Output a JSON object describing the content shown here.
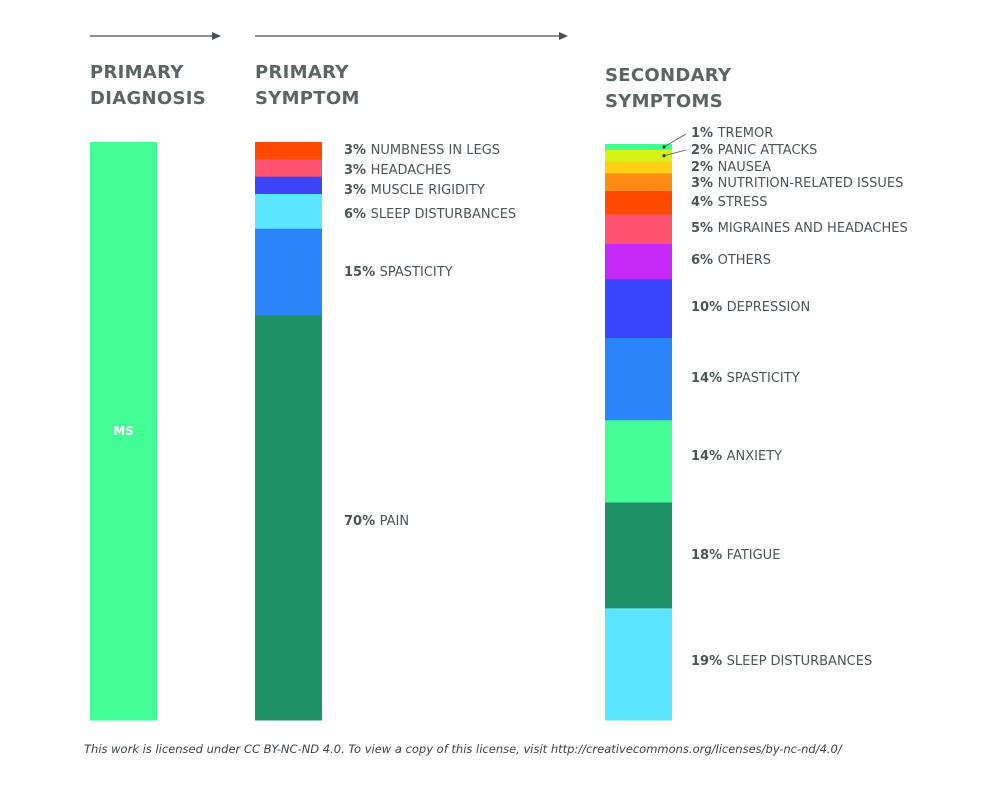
{
  "chart_data": {
    "type": "bar",
    "subtype": "stacked-column-flow",
    "columns": [
      {
        "id": "primary-diagnosis",
        "header": [
          "PRIMARY",
          "DIAGNOSIS"
        ],
        "segments": [
          {
            "pct": "",
            "label": "MS",
            "value": 100,
            "color": "#42fc95",
            "inside": true
          }
        ]
      },
      {
        "id": "primary-symptom",
        "header": [
          "PRIMARY",
          "SYMPTOM"
        ],
        "segments": [
          {
            "pct": "3%",
            "label": "NUMBNESS IN LEGS",
            "value": 3,
            "color": "#ff4a06"
          },
          {
            "pct": "3%",
            "label": "HEADACHES",
            "value": 3,
            "color": "#ff5270"
          },
          {
            "pct": "3%",
            "label": "MUSCLE RIGIDITY",
            "value": 3,
            "color": "#3a45fb"
          },
          {
            "pct": "6%",
            "label": "SLEEP DISTURBANCES",
            "value": 6,
            "color": "#5ce6fe"
          },
          {
            "pct": "15%",
            "label": "SPASTICITY",
            "value": 15,
            "color": "#2c84fb"
          },
          {
            "pct": "70%",
            "label": "PAIN",
            "value": 70,
            "color": "#1f9168"
          }
        ]
      },
      {
        "id": "secondary-symptoms",
        "header": [
          "SECONDARY",
          "SYMPTOMS"
        ],
        "segments": [
          {
            "pct": "1%",
            "label": "TREMOR",
            "value": 1,
            "color": "#42fc95"
          },
          {
            "pct": "2%",
            "label": "PANIC ATTACKS",
            "value": 2,
            "color": "#d5f219"
          },
          {
            "pct": "2%",
            "label": "NAUSEA",
            "value": 2,
            "color": "#ffcf12"
          },
          {
            "pct": "3%",
            "label": "NUTRITION-RELATED ISSUES",
            "value": 3,
            "color": "#ff8b16"
          },
          {
            "pct": "4%",
            "label": "STRESS",
            "value": 4,
            "color": "#ff4a06"
          },
          {
            "pct": "5%",
            "label": "MIGRAINES AND HEADACHES",
            "value": 5,
            "color": "#ff5270"
          },
          {
            "pct": "6%",
            "label": "OTHERS",
            "value": 6,
            "color": "#c529f5"
          },
          {
            "pct": "10%",
            "label": "DEPRESSION",
            "value": 10,
            "color": "#3a45fb"
          },
          {
            "pct": "14%",
            "label": "SPASTICITY",
            "value": 14,
            "color": "#2c84fb"
          },
          {
            "pct": "14%",
            "label": "ANXIETY",
            "value": 14,
            "color": "#42fc95"
          },
          {
            "pct": "18%",
            "label": "FATIGUE",
            "value": 18,
            "color": "#1f9168"
          },
          {
            "pct": "19%",
            "label": "SLEEP DISTURBANCES",
            "value": 19,
            "color": "#5ce6fe"
          }
        ]
      }
    ]
  },
  "footer": "This work is licensed under CC BY-NC-ND 4.0. To view a copy of this license, visit http://creativecommons.org/licenses/by-nc-nd/4.0/"
}
